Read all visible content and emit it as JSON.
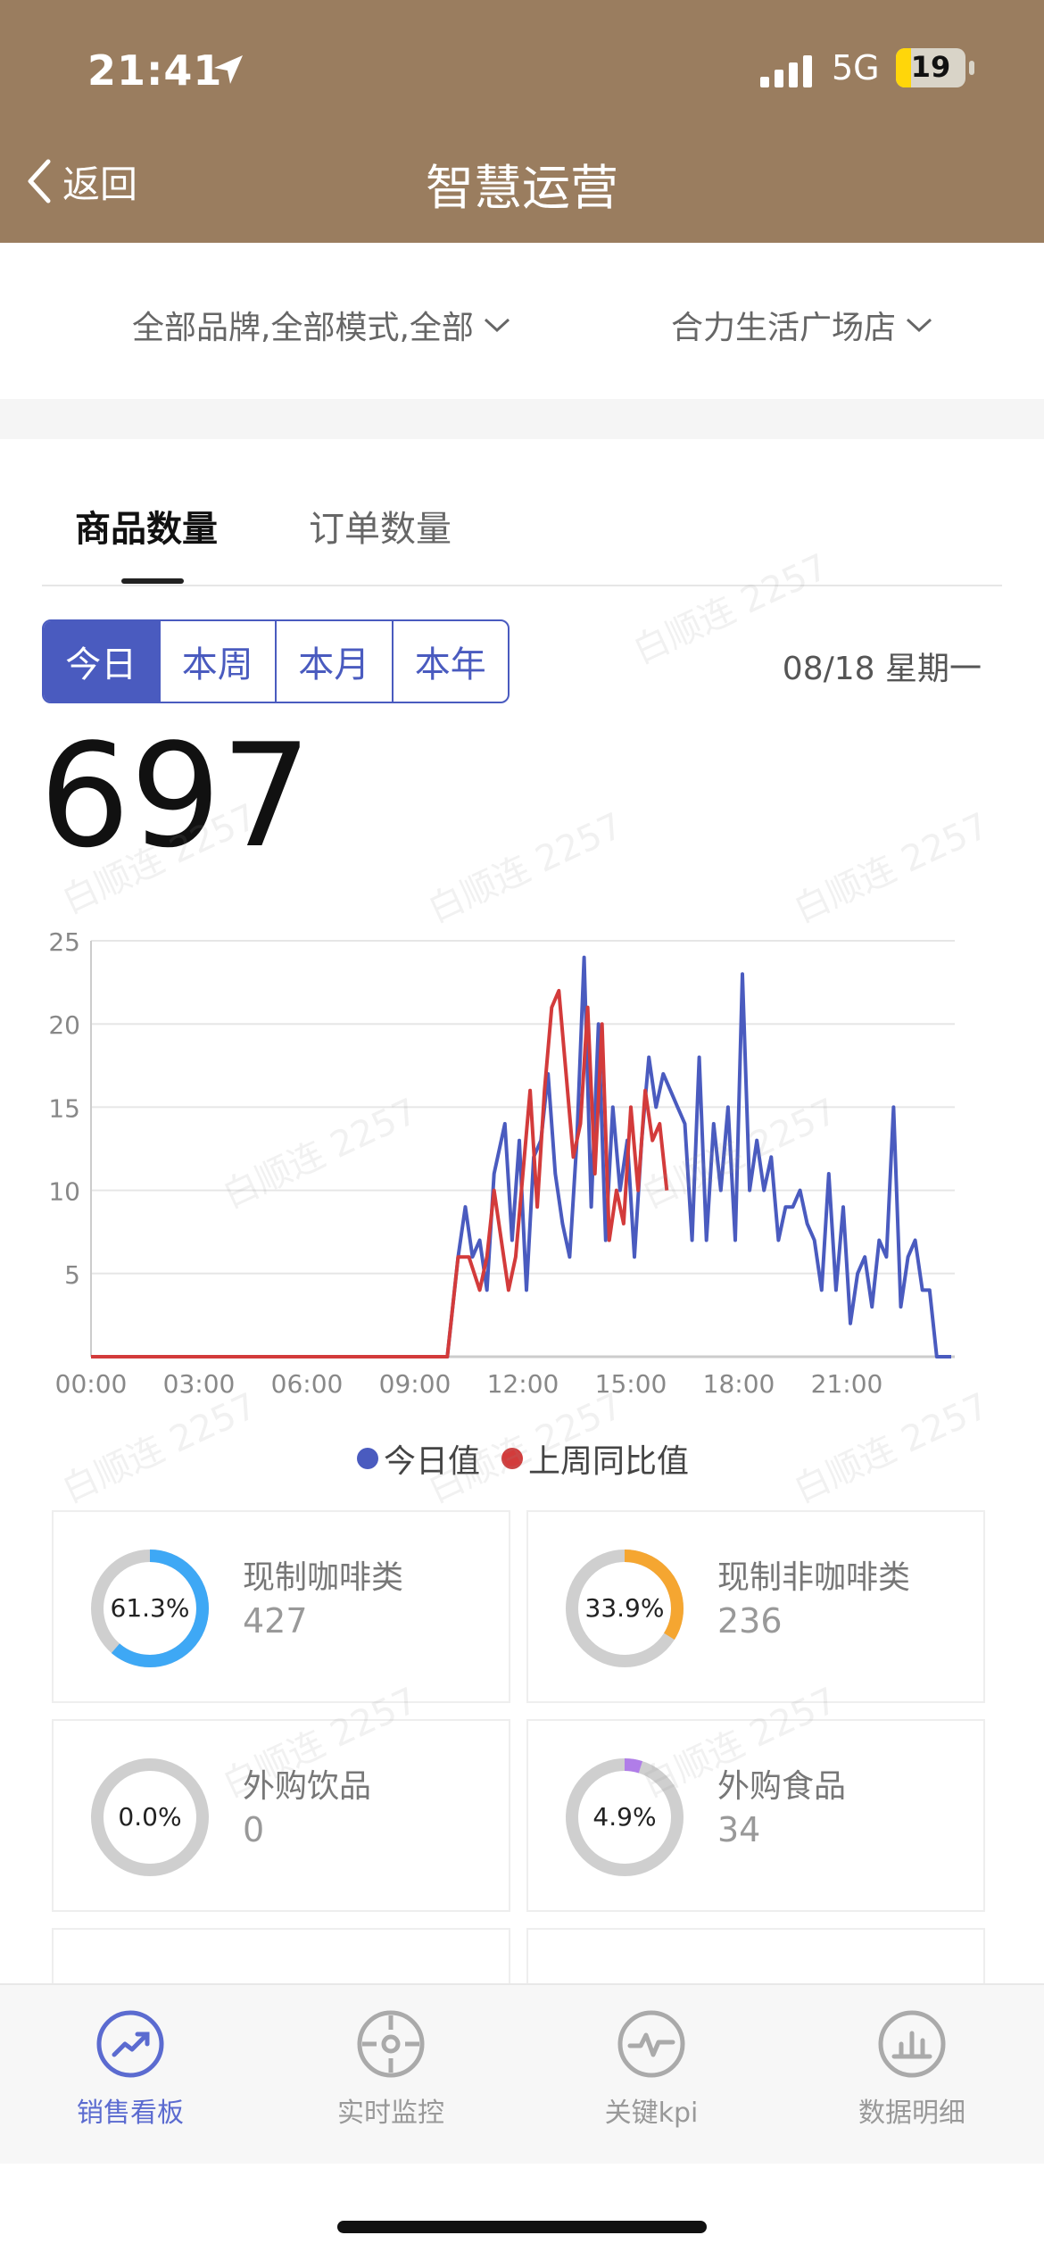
{
  "status": {
    "time": "21:41",
    "network": "5G",
    "battery": "19"
  },
  "nav": {
    "back_label": "返回",
    "title": "智慧运营"
  },
  "filters": {
    "brand": "全部品牌,全部模式,全部",
    "store": "合力生活广场店"
  },
  "tabs": [
    "商品数量",
    "订单数量"
  ],
  "periods": [
    "今日",
    "本周",
    "本月",
    "本年"
  ],
  "date": "08/18 星期一",
  "total": "697",
  "chart_data": {
    "type": "line",
    "x_labels": [
      "00:00",
      "03:00",
      "06:00",
      "09:00",
      "12:00",
      "15:00",
      "18:00",
      "21:00"
    ],
    "y_ticks": [
      "5",
      "10",
      "15",
      "20",
      "25"
    ],
    "ylim": [
      0,
      25
    ],
    "xlim": [
      0,
      24
    ],
    "series": [
      {
        "name": "今日值",
        "color": "#4a5bbf",
        "points": [
          [
            0,
            0
          ],
          [
            9.9,
            0
          ],
          [
            10.2,
            6
          ],
          [
            10.4,
            9
          ],
          [
            10.6,
            6
          ],
          [
            10.8,
            7
          ],
          [
            11.0,
            4
          ],
          [
            11.2,
            11
          ],
          [
            11.5,
            14
          ],
          [
            11.7,
            7
          ],
          [
            11.9,
            13
          ],
          [
            12.1,
            4
          ],
          [
            12.3,
            12
          ],
          [
            12.5,
            13
          ],
          [
            12.7,
            17
          ],
          [
            12.9,
            11
          ],
          [
            13.1,
            8
          ],
          [
            13.3,
            6
          ],
          [
            13.5,
            13
          ],
          [
            13.7,
            24
          ],
          [
            13.9,
            9
          ],
          [
            14.1,
            20
          ],
          [
            14.3,
            7
          ],
          [
            14.5,
            15
          ],
          [
            14.7,
            10
          ],
          [
            14.9,
            13
          ],
          [
            15.1,
            6
          ],
          [
            15.3,
            13
          ],
          [
            15.5,
            18
          ],
          [
            15.7,
            15
          ],
          [
            15.9,
            17
          ],
          [
            16.1,
            16
          ],
          [
            16.3,
            15
          ],
          [
            16.5,
            14
          ],
          [
            16.7,
            7
          ],
          [
            16.9,
            18
          ],
          [
            17.1,
            7
          ],
          [
            17.3,
            14
          ],
          [
            17.5,
            10
          ],
          [
            17.7,
            15
          ],
          [
            17.9,
            7
          ],
          [
            18.1,
            23
          ],
          [
            18.3,
            10
          ],
          [
            18.5,
            13
          ],
          [
            18.7,
            10
          ],
          [
            18.9,
            12
          ],
          [
            19.1,
            7
          ],
          [
            19.3,
            9
          ],
          [
            19.5,
            9
          ],
          [
            19.7,
            10
          ],
          [
            19.9,
            8
          ],
          [
            20.1,
            7
          ],
          [
            20.3,
            4
          ],
          [
            20.5,
            11
          ],
          [
            20.7,
            4
          ],
          [
            20.9,
            9
          ],
          [
            21.1,
            2
          ],
          [
            21.3,
            5
          ],
          [
            21.5,
            6
          ],
          [
            21.7,
            3
          ],
          [
            21.9,
            7
          ],
          [
            22.1,
            6
          ],
          [
            22.3,
            15
          ],
          [
            22.5,
            3
          ],
          [
            22.7,
            6
          ],
          [
            22.9,
            7
          ],
          [
            23.1,
            4
          ],
          [
            23.3,
            4
          ],
          [
            23.5,
            0
          ],
          [
            23.9,
            0
          ]
        ]
      },
      {
        "name": "上周同比值",
        "color": "#d33b3b",
        "points": [
          [
            0,
            0
          ],
          [
            9.9,
            0
          ],
          [
            10.2,
            6
          ],
          [
            10.5,
            6
          ],
          [
            10.8,
            4
          ],
          [
            11.0,
            6
          ],
          [
            11.2,
            10
          ],
          [
            11.4,
            7
          ],
          [
            11.6,
            4
          ],
          [
            11.8,
            6
          ],
          [
            12.0,
            11
          ],
          [
            12.2,
            16
          ],
          [
            12.4,
            9
          ],
          [
            12.6,
            16
          ],
          [
            12.8,
            21
          ],
          [
            13.0,
            22
          ],
          [
            13.2,
            17
          ],
          [
            13.4,
            12
          ],
          [
            13.6,
            14
          ],
          [
            13.8,
            21
          ],
          [
            14.0,
            11
          ],
          [
            14.2,
            20
          ],
          [
            14.4,
            7
          ],
          [
            14.6,
            10
          ],
          [
            14.8,
            8
          ],
          [
            15.0,
            15
          ],
          [
            15.2,
            10
          ],
          [
            15.4,
            16
          ],
          [
            15.6,
            13
          ],
          [
            15.8,
            14
          ],
          [
            16.0,
            10
          ]
        ]
      }
    ],
    "legend": [
      "今日值",
      "上周同比值"
    ],
    "grid": true
  },
  "categories": [
    {
      "name": "现制咖啡类",
      "value": "427",
      "percent_label": "61.3%",
      "percent": 61.3,
      "color": "#3ea8f5"
    },
    {
      "name": "现制非咖啡类",
      "value": "236",
      "percent_label": "33.9%",
      "percent": 33.9,
      "color": "#f5a631"
    },
    {
      "name": "外购饮品",
      "value": "0",
      "percent_label": "0.0%",
      "percent": 0.0,
      "color": "#aaaaaa"
    },
    {
      "name": "外购食品",
      "value": "34",
      "percent_label": "4.9%",
      "percent": 4.9,
      "color": "#b07de8"
    }
  ],
  "bottom_tabs": [
    {
      "label": "销售看板",
      "icon": "trend-icon",
      "active": true
    },
    {
      "label": "实时监控",
      "icon": "target-icon",
      "active": false
    },
    {
      "label": "关键kpi",
      "icon": "pulse-icon",
      "active": false
    },
    {
      "label": "数据明细",
      "icon": "bar-chart-icon",
      "active": false
    }
  ],
  "colors": {
    "header": "#9a7d5f",
    "accent": "#4a5bbf",
    "inactive": "#999999"
  },
  "watermark": "白顺连 2257"
}
